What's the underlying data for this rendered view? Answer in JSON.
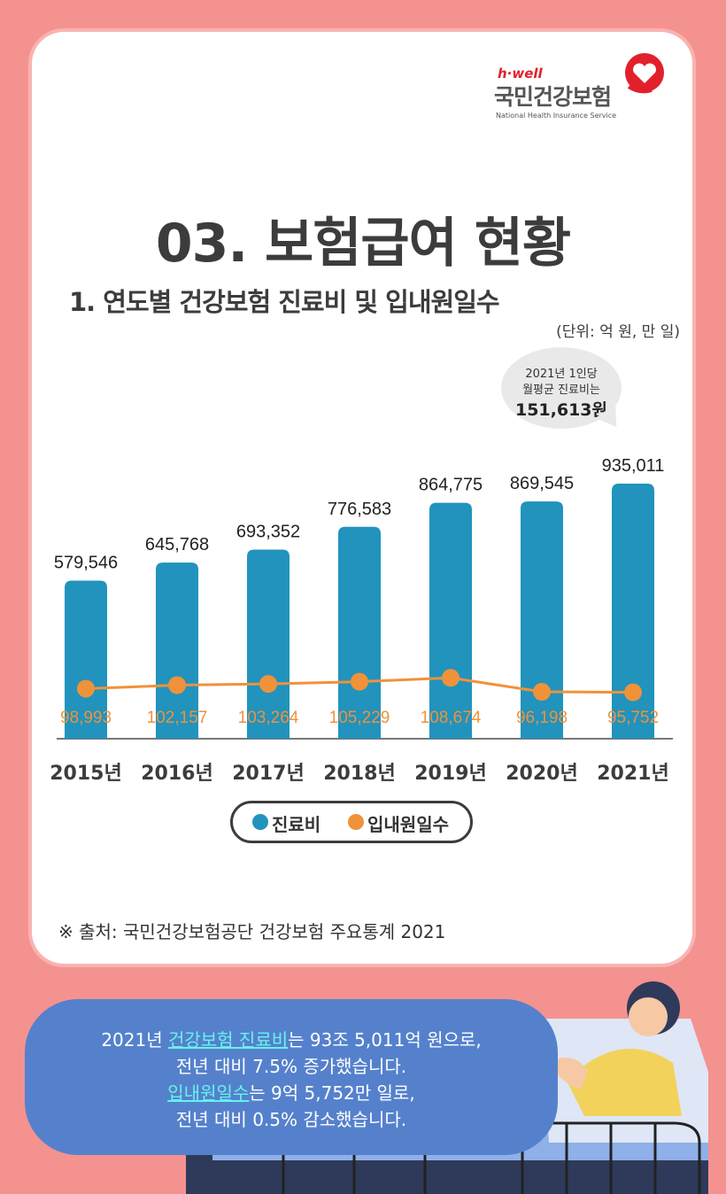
{
  "logo": {
    "brand": "h·well",
    "name": "국민건강보험",
    "english": "National Health Insurance Service"
  },
  "title": "03. 보험급여 현황",
  "subtitle": "1. 연도별 건강보험 진료비 및 입내원일수",
  "unit": "(단위: 억 원, 만 일)",
  "callout": {
    "line1": "2021년 1인당",
    "line2": "월평균 진료비는",
    "value": "151,613원"
  },
  "legend": {
    "cost": "진료비",
    "days": "입내원일수"
  },
  "source": "※ 출처: 국민건강보험공단 건강보험 주요통계 2021",
  "message": {
    "l1_pre": "2021년 ",
    "l1_hl": "건강보험 진료비",
    "l1_post": "는 93조 5,011억 원으로,",
    "l2": "전년 대비 7.5% 증가했습니다.",
    "l3_hl": "입내원일수",
    "l3_post": "는 9억 5,752만 일로,",
    "l4": "전년 대비 0.5% 감소했습니다."
  },
  "colors": {
    "bar": "#2193bd",
    "line": "#f0923a",
    "background": "#f4928f",
    "message": "#5581cc"
  },
  "chart_data": {
    "type": "bar",
    "categories": [
      "2015년",
      "2016년",
      "2017년",
      "2018년",
      "2019년",
      "2020년",
      "2021년"
    ],
    "series": [
      {
        "name": "진료비",
        "type": "bar",
        "values": [
          579546,
          645768,
          693352,
          776583,
          864775,
          869545,
          935011
        ],
        "labels": [
          "579,546",
          "645,768",
          "693,352",
          "776,583",
          "864,775",
          "869,545",
          "935,011"
        ]
      },
      {
        "name": "입내원일수",
        "type": "line",
        "values": [
          98993,
          102157,
          103264,
          105229,
          108674,
          96198,
          95752
        ],
        "labels": [
          "98,993",
          "102,157",
          "103,264",
          "105,229",
          "108,674",
          "96,198",
          "95,752"
        ]
      }
    ]
  }
}
